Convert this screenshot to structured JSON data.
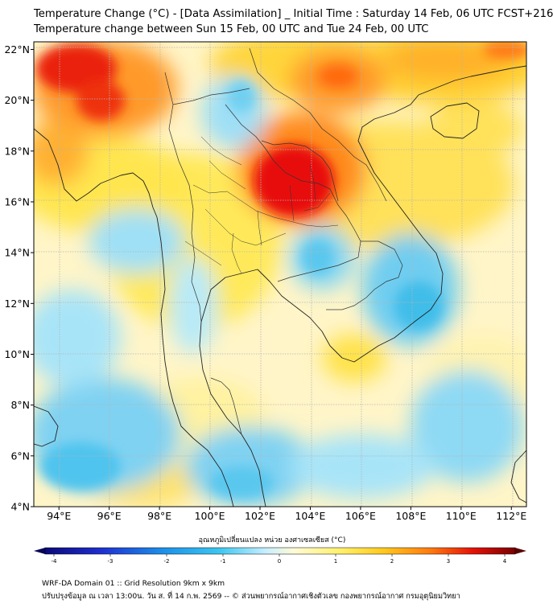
{
  "header": {
    "title": "Temperature Change (°C) - [Data Assimilation] _ Initial Time : Saturday 14 Feb, 06 UTC FCST+216",
    "subtitle": "Temperature change between Sun 15 Feb, 00 UTC and Tue 24 Feb, 00 UTC"
  },
  "map": {
    "lat_labels": [
      "22°N",
      "20°N",
      "18°N",
      "16°N",
      "14°N",
      "12°N",
      "10°N",
      "8°N",
      "6°N",
      "4°N"
    ],
    "lon_labels": [
      "94°E",
      "96°E",
      "98°E",
      "100°E",
      "102°E",
      "104°E",
      "106°E",
      "108°E",
      "110°E",
      "112°E"
    ],
    "lat_range": [
      4,
      22.3
    ],
    "lon_range": [
      93,
      112.6
    ]
  },
  "colorbar": {
    "title": "อุณหภูมิเปลี่ยนแปลง หน่วย องศาเซลเซียส (°C)",
    "ticks": [
      "-4",
      "-3",
      "-2",
      "-1",
      "0",
      "1",
      "2",
      "3",
      "4"
    ],
    "range": [
      -4,
      4
    ]
  },
  "footer": {
    "line1": "WRF-DA Domain 01 :: Grid Resolution 9km x 9km",
    "line2": "ปรับปรุงข้อมูล ณ เวลา 13:00น. วัน ส. ที่ 14 ก.พ. 2569 -- © ส่วนพยากรณ์อากาศเชิงตัวเลข กองพยากรณ์อากาศ กรมอุตุนิยมวิทยา"
  },
  "colors": {
    "warm_strong": "#e8100a",
    "warm": "#ff8a1a",
    "mild_warm": "#ffe84a",
    "neutral": "#fff8d0",
    "cool": "#a7e6f7",
    "cool_strong": "#4cc2ee"
  }
}
